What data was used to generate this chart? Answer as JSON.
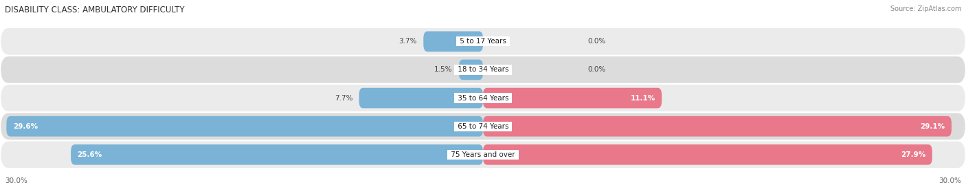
{
  "title": "DISABILITY CLASS: AMBULATORY DIFFICULTY",
  "source": "Source: ZipAtlas.com",
  "categories": [
    "5 to 17 Years",
    "18 to 34 Years",
    "35 to 64 Years",
    "65 to 74 Years",
    "75 Years and over"
  ],
  "male_values": [
    3.7,
    1.5,
    7.7,
    29.6,
    25.6
  ],
  "female_values": [
    0.0,
    0.0,
    11.1,
    29.1,
    27.9
  ],
  "male_color": "#7ab3d6",
  "female_color": "#e8788a",
  "row_color_light": "#ebebeb",
  "row_color_dark": "#dcdcdc",
  "x_max": 30.0,
  "title_fontsize": 8.5,
  "label_fontsize": 7.5,
  "tick_fontsize": 7.5,
  "legend_fontsize": 8,
  "source_fontsize": 7
}
